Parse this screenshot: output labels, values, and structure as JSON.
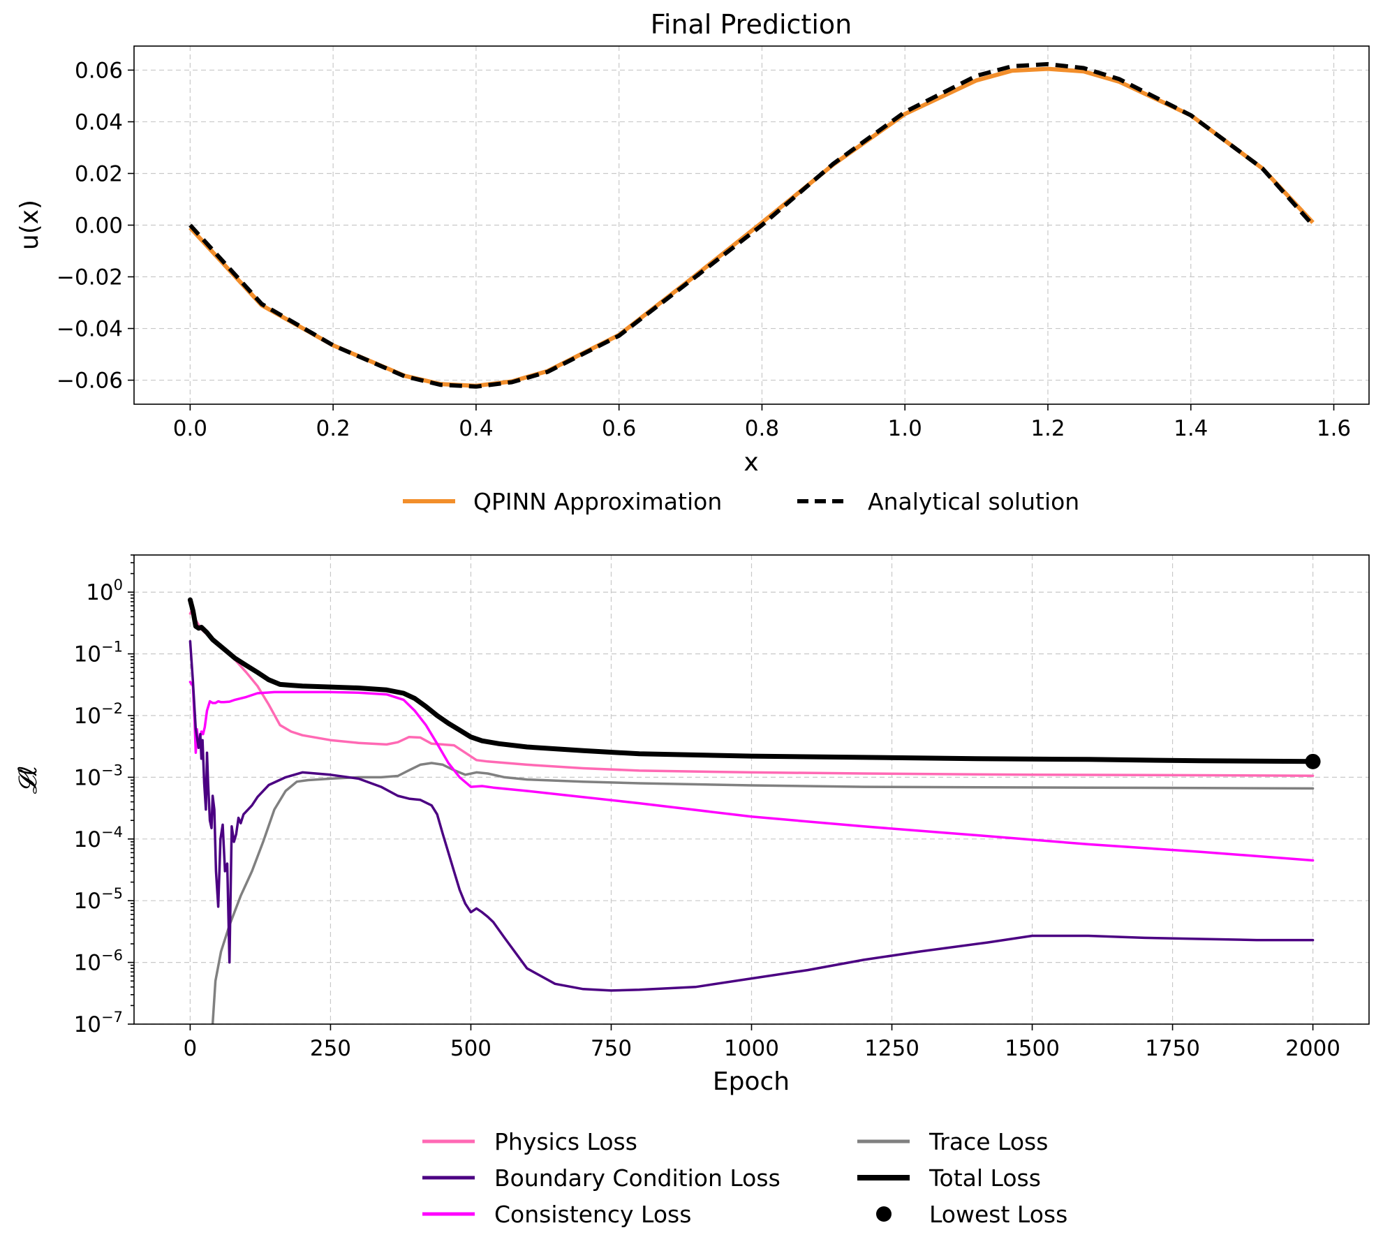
{
  "chart_data": [
    {
      "type": "line",
      "title": "Final Prediction",
      "xlabel": "x",
      "ylabel": "u(x)",
      "xlim": [
        -0.0785,
        1.6493
      ],
      "ylim": [
        -0.0693,
        0.0693
      ],
      "xticks": [
        0.0,
        0.2,
        0.4,
        0.6,
        0.8,
        1.0,
        1.2,
        1.4,
        1.6
      ],
      "xtick_labels": [
        "0.0",
        "0.2",
        "0.4",
        "0.6",
        "0.8",
        "1.0",
        "1.2",
        "1.4",
        "1.6"
      ],
      "yticks": [
        -0.06,
        -0.04,
        -0.02,
        0.0,
        0.02,
        0.04,
        0.06
      ],
      "ytick_labels": [
        "−0.06",
        "−0.04",
        "−0.02",
        "0.00",
        "0.02",
        "0.04",
        "0.06"
      ],
      "grid": true,
      "legend_position": "below",
      "series": [
        {
          "name": "QPINN Approximation",
          "color": "#f28e2b",
          "style": "solid",
          "x": [
            0.0,
            0.1,
            0.2,
            0.3,
            0.35,
            0.4,
            0.45,
            0.5,
            0.6,
            0.7,
            0.8,
            0.9,
            1.0,
            1.1,
            1.15,
            1.2,
            1.25,
            1.3,
            1.4,
            1.5,
            1.5708
          ],
          "y": [
            -0.001,
            -0.031,
            -0.0465,
            -0.0583,
            -0.0615,
            -0.0622,
            -0.0605,
            -0.0565,
            -0.0425,
            -0.021,
            0.001,
            0.0235,
            0.043,
            0.056,
            0.0598,
            0.0605,
            0.0595,
            0.0555,
            0.0425,
            0.022,
            0.001
          ]
        },
        {
          "name": "Analytical solution",
          "color": "#000000",
          "style": "dashed",
          "x": [
            0.0,
            0.1,
            0.2,
            0.3,
            0.35,
            0.4,
            0.45,
            0.5,
            0.6,
            0.7,
            0.8,
            0.9,
            1.0,
            1.1,
            1.15,
            1.2,
            1.25,
            1.3,
            1.4,
            1.5,
            1.5708
          ],
          "y": [
            0.0,
            -0.0305,
            -0.0465,
            -0.0585,
            -0.0618,
            -0.0625,
            -0.0608,
            -0.0568,
            -0.0428,
            -0.0215,
            0.0,
            0.0238,
            0.0438,
            0.0578,
            0.0615,
            0.0623,
            0.0608,
            0.0565,
            0.0425,
            0.022,
            0.0
          ]
        }
      ]
    },
    {
      "type": "line",
      "title": "",
      "xlabel": "Epoch",
      "ylabel": "𝓛ℓ",
      "yscale": "log",
      "xlim": [
        -100,
        2100
      ],
      "ylim": [
        1e-07,
        4
      ],
      "xticks": [
        0,
        250,
        500,
        750,
        1000,
        1250,
        1500,
        1750,
        2000
      ],
      "xtick_labels": [
        "0",
        "250",
        "500",
        "750",
        "1000",
        "1250",
        "1500",
        "1750",
        "2000"
      ],
      "yticks": [
        0,
        -1,
        -2,
        -3,
        -4,
        -5,
        -6,
        -7
      ],
      "ytick_labels": [
        "10",
        "10",
        "10",
        "10",
        "10",
        "10",
        "10",
        "10"
      ],
      "ytick_exponents": [
        "0",
        "−1",
        "−2",
        "−3",
        "−4",
        "−5",
        "−6",
        "−7"
      ],
      "grid": true,
      "legend_position": "below",
      "series": [
        {
          "name": "Physics Loss",
          "color": "#ff69b4",
          "width": 3.5,
          "x": [
            0,
            5,
            10,
            20,
            40,
            60,
            80,
            100,
            120,
            140,
            160,
            180,
            200,
            250,
            300,
            350,
            370,
            390,
            410,
            430,
            450,
            470,
            490,
            510,
            530,
            600,
            700,
            800,
            1000,
            1200,
            1500,
            1800,
            2000
          ],
          "y": [
            0.45,
            0.55,
            0.35,
            0.25,
            0.17,
            0.12,
            0.08,
            0.05,
            0.03,
            0.015,
            0.007,
            0.0055,
            0.0048,
            0.004,
            0.0036,
            0.0034,
            0.0037,
            0.0045,
            0.0044,
            0.0035,
            0.0034,
            0.0033,
            0.0025,
            0.0019,
            0.0018,
            0.0016,
            0.0014,
            0.00128,
            0.0012,
            0.00115,
            0.0011,
            0.00108,
            0.00106
          ]
        },
        {
          "name": "Boundary Condition Loss",
          "color": "#4b0082",
          "width": 3.5,
          "x": [
            0,
            5,
            10,
            15,
            18,
            20,
            22,
            25,
            28,
            30,
            32,
            35,
            38,
            40,
            43,
            46,
            50,
            54,
            58,
            62,
            66,
            70,
            74,
            78,
            82,
            86,
            90,
            95,
            100,
            110,
            120,
            140,
            170,
            200,
            250,
            300,
            340,
            370,
            390,
            410,
            430,
            440,
            450,
            460,
            470,
            480,
            490,
            500,
            510,
            520,
            530,
            540,
            560,
            600,
            650,
            700,
            750,
            800,
            900,
            1000,
            1100,
            1200,
            1300,
            1420,
            1500,
            1600,
            1700,
            1800,
            1900,
            2000
          ],
          "y": [
            0.16,
            0.035,
            0.006,
            0.003,
            0.005,
            0.002,
            0.004,
            0.0008,
            0.0003,
            0.0025,
            0.0008,
            0.0002,
            0.00015,
            0.0005,
            0.0003,
            3e-05,
            8e-06,
            0.0001,
            0.00017,
            3e-05,
            4e-05,
            1e-06,
            0.00016,
            9e-05,
            0.00012,
            0.00022,
            0.00018,
            0.00025,
            0.00028,
            0.00035,
            0.00048,
            0.00075,
            0.001,
            0.0012,
            0.0011,
            0.00095,
            0.0007,
            0.0005,
            0.00045,
            0.00043,
            0.00035,
            0.00025,
            0.00012,
            6e-05,
            3e-05,
            1.5e-05,
            9e-06,
            6.5e-06,
            7.5e-06,
            6.5e-06,
            5.5e-06,
            4.5e-06,
            2.5e-06,
            8e-07,
            4.5e-07,
            3.7e-07,
            3.5e-07,
            3.6e-07,
            4e-07,
            5.5e-07,
            7.5e-07,
            1.1e-06,
            1.5e-06,
            2.1e-06,
            2.7e-06,
            2.7e-06,
            2.5e-06,
            2.4e-06,
            2.3e-06,
            2.3e-06
          ]
        },
        {
          "name": "Consistency Loss",
          "color": "#ff00ff",
          "width": 3.5,
          "x": [
            0,
            5,
            8,
            10,
            12,
            15,
            18,
            20,
            23,
            26,
            30,
            35,
            40,
            45,
            50,
            55,
            60,
            70,
            80,
            100,
            120,
            150,
            200,
            250,
            300,
            350,
            380,
            400,
            420,
            440,
            460,
            480,
            500,
            520,
            540,
            600,
            800,
            1000,
            1200,
            1400,
            1600,
            1800,
            2000
          ],
          "y": [
            0.035,
            0.03,
            0.008,
            0.0025,
            0.006,
            0.003,
            0.0045,
            0.0055,
            0.005,
            0.0065,
            0.012,
            0.017,
            0.016,
            0.016,
            0.017,
            0.0165,
            0.0165,
            0.0168,
            0.018,
            0.02,
            0.023,
            0.024,
            0.024,
            0.024,
            0.0235,
            0.022,
            0.018,
            0.012,
            0.007,
            0.0035,
            0.0017,
            0.001,
            0.0007,
            0.00072,
            0.00068,
            0.0006,
            0.00038,
            0.00023,
            0.00016,
            0.000115,
            8.2e-05,
            6.2e-05,
            4.5e-05
          ]
        },
        {
          "name": "Trace Loss",
          "color": "#808080",
          "width": 3.5,
          "x": [
            40,
            45,
            55,
            70,
            90,
            110,
            130,
            150,
            170,
            190,
            210,
            250,
            300,
            340,
            370,
            390,
            410,
            430,
            450,
            470,
            490,
            510,
            530,
            560,
            600,
            700,
            800,
            1000,
            1200,
            1400,
            1600,
            1800,
            2000
          ],
          "y": [
            1e-07,
            5e-07,
            1.5e-06,
            4e-06,
            1.2e-05,
            3e-05,
            9e-05,
            0.0003,
            0.0006,
            0.00085,
            0.0009,
            0.00095,
            0.001,
            0.001,
            0.00105,
            0.0013,
            0.0016,
            0.0017,
            0.0016,
            0.0013,
            0.0011,
            0.0012,
            0.00115,
            0.001,
            0.00092,
            0.00085,
            0.0008,
            0.00074,
            0.0007,
            0.00069,
            0.00068,
            0.00067,
            0.00066
          ]
        },
        {
          "name": "Total Loss",
          "color": "#000000",
          "width": 7,
          "x": [
            0,
            5,
            10,
            15,
            20,
            30,
            40,
            60,
            80,
            100,
            120,
            140,
            160,
            180,
            200,
            250,
            300,
            350,
            380,
            400,
            420,
            440,
            460,
            480,
            500,
            520,
            550,
            600,
            700,
            800,
            1000,
            1200,
            1400,
            1600,
            1800,
            2000
          ],
          "y": [
            0.75,
            0.5,
            0.28,
            0.26,
            0.27,
            0.22,
            0.17,
            0.12,
            0.085,
            0.065,
            0.05,
            0.038,
            0.032,
            0.031,
            0.03,
            0.029,
            0.028,
            0.026,
            0.023,
            0.019,
            0.014,
            0.01,
            0.0075,
            0.0058,
            0.0045,
            0.0039,
            0.0035,
            0.0031,
            0.0027,
            0.0024,
            0.0022,
            0.0021,
            0.002,
            0.00195,
            0.00185,
            0.0018
          ]
        }
      ],
      "marker": {
        "name": "Lowest Loss",
        "x": 2000,
        "y": 0.0018,
        "color": "#000000"
      }
    }
  ]
}
